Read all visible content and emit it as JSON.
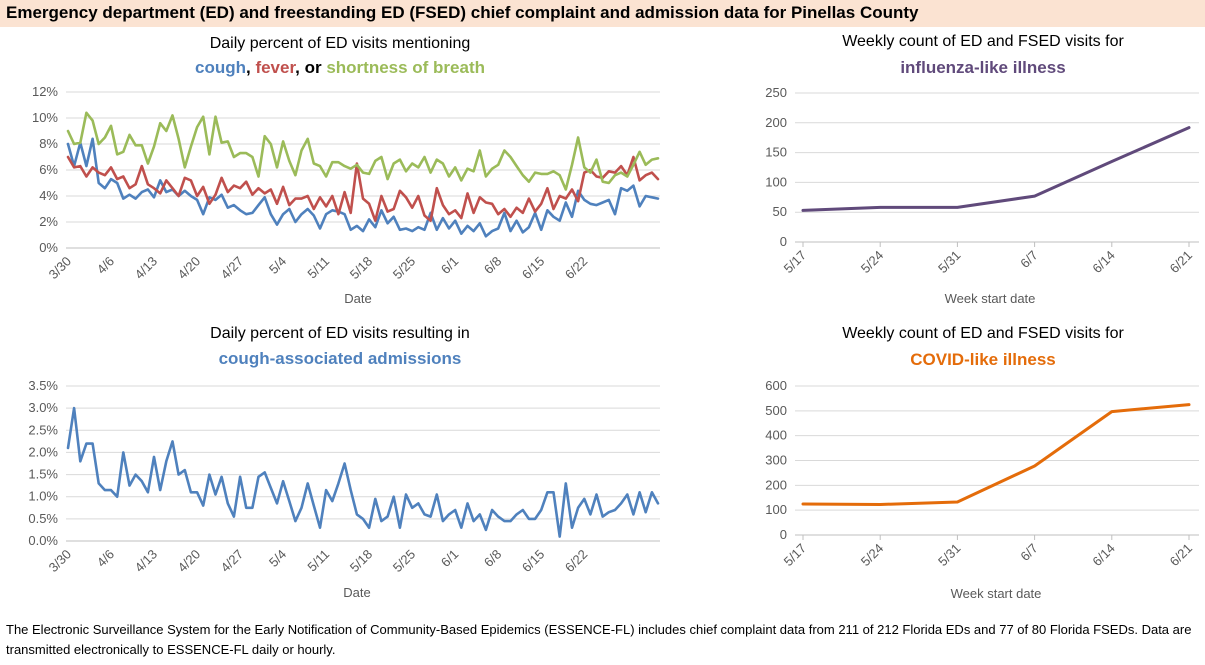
{
  "header": {
    "title": "Emergency department (ED) and freestanding ED (FSED) chief complaint and admission data for Pinellas County"
  },
  "footer": {
    "note": "The Electronic Surveillance System for the Early Notification of Community-Based Epidemics (ESSENCE-FL) includes chief complaint data from 211 of 212 Florida EDs and 77 of 80 Florida FSEDs. Data are transmitted electronically to ESSENCE-FL daily or hourly."
  },
  "colors": {
    "cough": "#4f81bd",
    "fever": "#c0504d",
    "sob": "#9bbb59",
    "ili": "#604a7b",
    "cli": "#e46c0a",
    "grid": "#d9d9d9",
    "banner": "#fbe3d2"
  },
  "chart_data": [
    {
      "id": "symptoms",
      "type": "line",
      "title": "Daily percent of ED visits mentioning",
      "subtitle": {
        "parts": [
          "cough",
          ", ",
          "fever",
          ", or ",
          "shortness of breath"
        ]
      },
      "xlabel": "Date",
      "ylabel": "",
      "ylim": [
        0,
        12
      ],
      "yticks": [
        "0%",
        "2%",
        "4%",
        "6%",
        "8%",
        "10%",
        "12%"
      ],
      "xtick_labels": [
        "3/30",
        "4/6",
        "4/13",
        "4/20",
        "4/27",
        "5/4",
        "5/11",
        "5/18",
        "5/25",
        "6/1",
        "6/8",
        "6/15",
        "6/22"
      ],
      "series": [
        {
          "name": "cough",
          "values": [
            8.0,
            6.3,
            8.1,
            6.3,
            8.4,
            5.0,
            4.6,
            5.3,
            5.0,
            3.8,
            4.1,
            3.8,
            4.3,
            4.5,
            3.9,
            5.2,
            4.3,
            4.5,
            4.0,
            4.4,
            4.0,
            3.7,
            2.6,
            3.9,
            3.7,
            4.1,
            3.1,
            3.3,
            2.9,
            2.6,
            2.7,
            3.3,
            3.9,
            2.6,
            1.8,
            2.6,
            3.0,
            2.0,
            2.6,
            3.0,
            2.5,
            1.5,
            2.6,
            2.9,
            2.8,
            2.6,
            1.4,
            1.7,
            1.3,
            2.2,
            1.6,
            2.9,
            1.9,
            2.4,
            1.4,
            1.5,
            1.3,
            1.6,
            1.4,
            2.7,
            1.4,
            2.3,
            1.5,
            2.1,
            1.1,
            1.7,
            1.3,
            1.9,
            0.9,
            1.3,
            1.5,
            2.7,
            1.3,
            2.1,
            1.2,
            1.6,
            2.7,
            1.4,
            2.9,
            2.4,
            2.1,
            3.5,
            2.4,
            4.4,
            3.7,
            3.4,
            3.3,
            3.5,
            3.7,
            2.6,
            4.6,
            4.4,
            4.8,
            3.2,
            4.0,
            3.9,
            3.8
          ]
        },
        {
          "name": "fever",
          "values": [
            7.0,
            6.2,
            6.3,
            5.5,
            6.2,
            5.8,
            5.6,
            6.2,
            5.3,
            5.5,
            4.6,
            4.9,
            6.3,
            4.9,
            4.6,
            4.2,
            5.2,
            4.6,
            4.0,
            5.4,
            5.2,
            4.0,
            4.7,
            3.4,
            4.1,
            5.4,
            4.3,
            4.8,
            4.6,
            5.1,
            4.1,
            4.6,
            4.2,
            4.5,
            3.4,
            4.7,
            3.3,
            3.8,
            3.8,
            4.0,
            3.0,
            3.9,
            3.2,
            4.0,
            2.6,
            4.3,
            2.7,
            6.5,
            3.8,
            3.4,
            2.1,
            4.0,
            2.8,
            3.0,
            4.4,
            3.9,
            3.1,
            4.0,
            2.5,
            2.1,
            4.6,
            3.3,
            2.6,
            2.9,
            2.3,
            4.2,
            2.7,
            3.9,
            3.5,
            3.4,
            2.6,
            3.0,
            2.4,
            3.1,
            2.7,
            3.8,
            2.8,
            3.4,
            4.6,
            3.0,
            4.0,
            3.8,
            4.5,
            3.6,
            5.8,
            6.0,
            5.5,
            5.4,
            5.9,
            5.8,
            6.3,
            5.6,
            7.0,
            5.2,
            5.6,
            5.8,
            5.3
          ]
        },
        {
          "name": "shortness of breath",
          "values": [
            9.0,
            8.0,
            8.1,
            10.4,
            9.8,
            8.0,
            8.5,
            9.4,
            7.2,
            7.4,
            8.7,
            7.9,
            7.9,
            6.5,
            7.8,
            9.6,
            9.0,
            10.2,
            8.4,
            6.2,
            7.8,
            9.3,
            10.1,
            7.2,
            10.1,
            8.1,
            8.2,
            7.0,
            7.3,
            7.3,
            7.0,
            5.5,
            8.6,
            8.0,
            6.2,
            8.2,
            6.7,
            5.6,
            7.5,
            8.4,
            6.5,
            6.3,
            5.5,
            6.6,
            6.6,
            6.3,
            6.1,
            6.4,
            5.8,
            5.7,
            6.7,
            7.0,
            5.3,
            6.5,
            6.8,
            5.9,
            6.5,
            6.2,
            7.0,
            5.8,
            6.8,
            6.5,
            5.5,
            6.2,
            5.2,
            6.1,
            5.9,
            7.5,
            5.5,
            6.1,
            6.4,
            7.5,
            7.0,
            6.3,
            5.6,
            5.1,
            5.8,
            5.7,
            5.7,
            5.9,
            5.6,
            4.5,
            6.4,
            8.5,
            6.2,
            5.8,
            6.8,
            5.1,
            5.0,
            5.6,
            5.8,
            5.5,
            6.4,
            7.4,
            6.4,
            6.8,
            6.9
          ]
        }
      ]
    },
    {
      "id": "admissions",
      "type": "line",
      "title": "Daily percent of ED visits resulting in",
      "subtitle": {
        "parts": [
          "cough-associated admissions"
        ]
      },
      "xlabel": "Date",
      "ylabel": "",
      "ylim": [
        0,
        3.5
      ],
      "yticks": [
        "0.0%",
        "0.5%",
        "1.0%",
        "1.5%",
        "2.0%",
        "2.5%",
        "3.0%",
        "3.5%"
      ],
      "xtick_labels": [
        "3/30",
        "4/6",
        "4/13",
        "4/20",
        "4/27",
        "5/4",
        "5/11",
        "5/18",
        "5/25",
        "6/1",
        "6/8",
        "6/15",
        "6/22"
      ],
      "series": [
        {
          "name": "cough-associated admissions",
          "values": [
            2.1,
            3.0,
            1.8,
            2.2,
            2.2,
            1.3,
            1.15,
            1.15,
            1.0,
            2.0,
            1.25,
            1.5,
            1.35,
            1.1,
            1.9,
            1.15,
            1.8,
            2.25,
            1.5,
            1.6,
            1.1,
            1.1,
            0.8,
            1.5,
            1.05,
            1.45,
            0.85,
            0.55,
            1.45,
            0.75,
            0.75,
            1.45,
            1.55,
            1.2,
            0.85,
            1.35,
            0.9,
            0.45,
            0.75,
            1.3,
            0.8,
            0.3,
            1.15,
            0.9,
            1.3,
            1.75,
            1.15,
            0.6,
            0.5,
            0.3,
            0.95,
            0.45,
            0.55,
            1.0,
            0.3,
            1.05,
            0.75,
            0.85,
            0.6,
            0.55,
            1.05,
            0.45,
            0.6,
            0.7,
            0.3,
            0.85,
            0.45,
            0.6,
            0.25,
            0.7,
            0.55,
            0.45,
            0.45,
            0.6,
            0.7,
            0.5,
            0.5,
            0.7,
            1.1,
            1.1,
            0.1,
            1.3,
            0.3,
            0.75,
            0.95,
            0.6,
            1.05,
            0.55,
            0.65,
            0.7,
            0.85,
            1.05,
            0.6,
            1.1,
            0.65,
            1.1,
            0.85
          ]
        }
      ]
    },
    {
      "id": "ili",
      "type": "line",
      "title": "Weekly count of ED and FSED visits for",
      "subtitle": {
        "parts": [
          "influenza-like illness"
        ]
      },
      "xlabel": "Week start date",
      "ylabel": "",
      "ylim": [
        0,
        250
      ],
      "yticks": [
        "0",
        "50",
        "100",
        "150",
        "200",
        "250"
      ],
      "categories": [
        "5/17",
        "5/24",
        "5/31",
        "6/7",
        "6/14",
        "6/21"
      ],
      "series": [
        {
          "name": "influenza-like illness",
          "values": [
            53,
            58,
            58,
            77,
            135,
            192
          ]
        }
      ]
    },
    {
      "id": "cli",
      "type": "line",
      "title": "Weekly count of ED and FSED visits for",
      "subtitle": {
        "parts": [
          "COVID-like illness"
        ]
      },
      "xlabel": "Week start date",
      "ylabel": "",
      "ylim": [
        0,
        600
      ],
      "yticks": [
        "0",
        "100",
        "200",
        "300",
        "400",
        "500",
        "600"
      ],
      "categories": [
        "5/17",
        "5/24",
        "5/31",
        "6/7",
        "6/14",
        "6/21"
      ],
      "series": [
        {
          "name": "COVID-like illness",
          "values": [
            125,
            123,
            133,
            278,
            497,
            525
          ]
        }
      ]
    }
  ]
}
